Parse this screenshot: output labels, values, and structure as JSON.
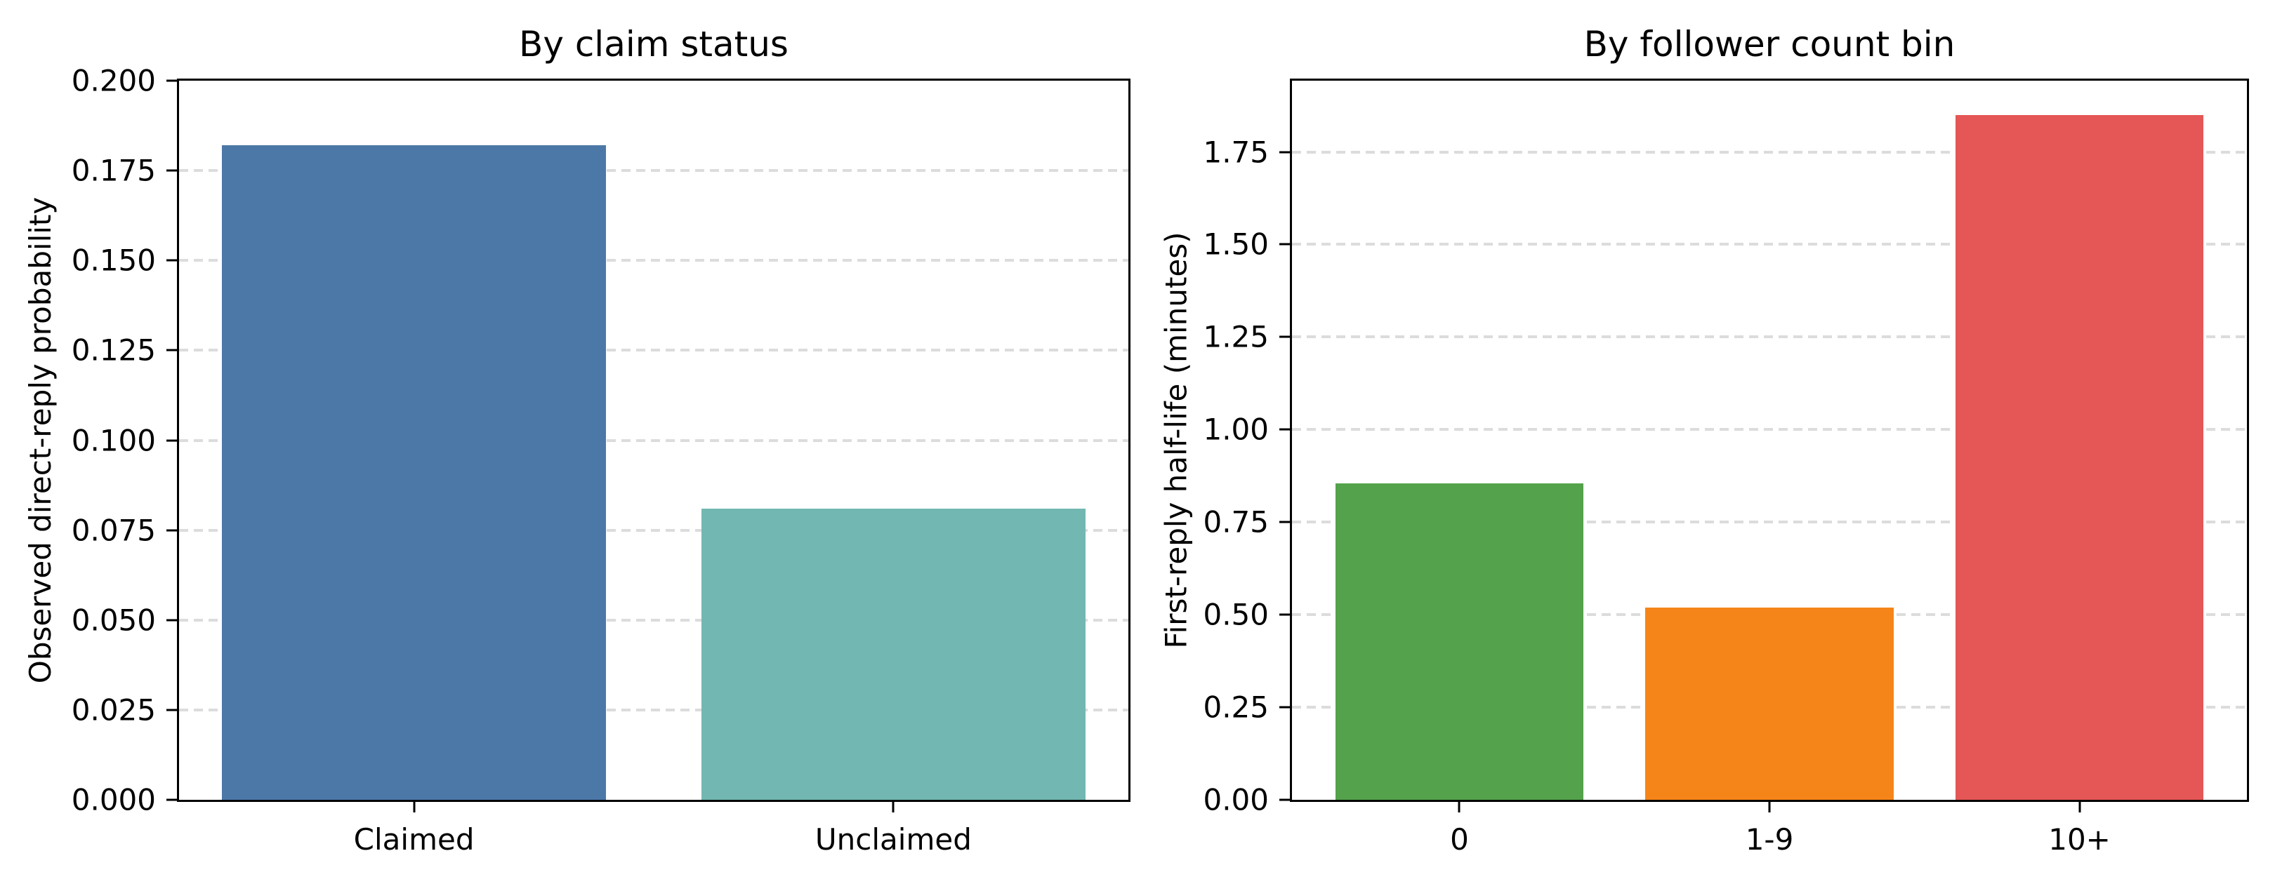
{
  "figure": {
    "background": "#ffffff",
    "text_color": "#000000",
    "grid_color": "#dcdcdc",
    "spine_color": "#000000"
  },
  "chart_data": [
    {
      "type": "bar",
      "title": "By claim status",
      "xlabel": "",
      "ylabel": "Observed direct-reply probability",
      "categories": [
        "Claimed",
        "Unclaimed"
      ],
      "values": [
        0.182,
        0.081
      ],
      "bar_colors": [
        "#4c78a8",
        "#72b7b2"
      ],
      "ylim": [
        0,
        0.2
      ],
      "yticks": [
        0,
        0.025,
        0.05,
        0.075,
        0.1,
        0.125,
        0.15,
        0.175,
        0.2
      ],
      "ytick_labels": [
        "0.000",
        "0.025",
        "0.050",
        "0.075",
        "0.100",
        "0.125",
        "0.150",
        "0.175",
        "0.200"
      ],
      "grid": "horizontal-dashed",
      "legend": "none"
    },
    {
      "type": "bar",
      "title": "By follower count bin",
      "xlabel": "",
      "ylabel": "First-reply half-life (minutes)",
      "categories": [
        "0",
        "1-9",
        "10+"
      ],
      "values": [
        0.855,
        0.52,
        1.85
      ],
      "bar_colors": [
        "#54a24b",
        "#f58518",
        "#e45756"
      ],
      "ylim": [
        0,
        1.9425
      ],
      "yticks": [
        0,
        0.25,
        0.5,
        0.75,
        1.0,
        1.25,
        1.5,
        1.75
      ],
      "ytick_labels": [
        "0.00",
        "0.25",
        "0.50",
        "0.75",
        "1.00",
        "1.25",
        "1.50",
        "1.75"
      ],
      "grid": "horizontal-dashed",
      "legend": "none"
    }
  ]
}
